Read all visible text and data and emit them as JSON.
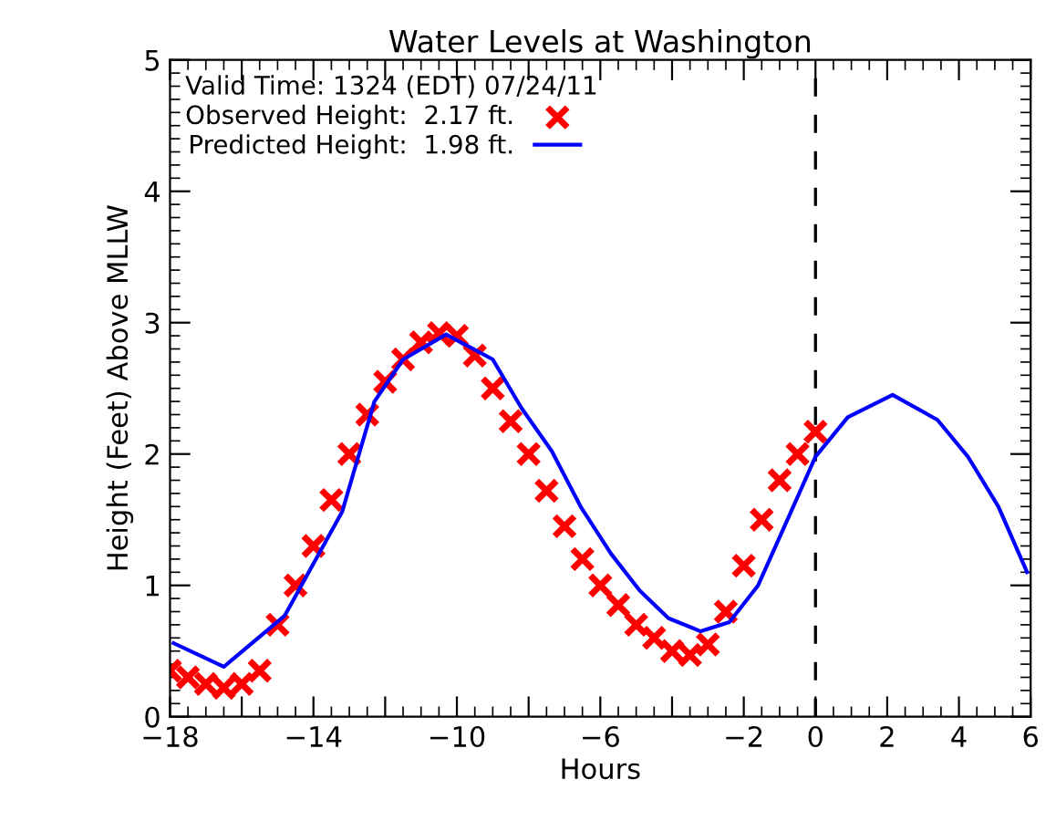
{
  "chart_data": {
    "type": "line",
    "title": "Water Levels at Washington",
    "xlabel": "Hours",
    "ylabel": "Height (Feet) Above MLLW",
    "legend_title": "Valid Time: 1324 (EDT) 07/24/11",
    "legend": "top left",
    "grid": false,
    "xlim": [
      -18,
      6
    ],
    "ylim": [
      0,
      5
    ],
    "xticks": [
      -18,
      {
        "value": -16,
        "label": null
      },
      -14,
      {
        "value": -12,
        "label": null
      },
      -10,
      {
        "value": -8,
        "label": null
      },
      -6,
      {
        "value": -4,
        "label": null
      },
      -2,
      0,
      2,
      4,
      6
    ],
    "yticks": [
      0,
      1,
      2,
      3,
      4,
      5
    ],
    "ref_lines": [
      {
        "axis": "x",
        "value": 0,
        "color": "#000000",
        "line_style": "dashed"
      }
    ],
    "series": [
      {
        "name": "Observed Height:  2.17 ft.",
        "type": "scatter",
        "marker": "cross",
        "color": "#ff0000",
        "x": [
          -18,
          -17.5,
          -17,
          -16.5,
          -16,
          -15.5,
          -15,
          -14.5,
          -14,
          -13.5,
          -13,
          -12.5,
          -12,
          -11.5,
          -11,
          -10.5,
          -10,
          -9.5,
          -9,
          -8.5,
          -8,
          -7.5,
          -7,
          -6.5,
          -6,
          -5.5,
          -5,
          -4.5,
          -4,
          -3.5,
          -3,
          -2.5,
          -2,
          -1.5,
          -1,
          -0.5,
          0
        ],
        "values": [
          0.35,
          0.3,
          0.25,
          0.22,
          0.25,
          0.35,
          0.7,
          1.0,
          1.3,
          1.65,
          2.0,
          2.3,
          2.55,
          2.72,
          2.85,
          2.92,
          2.9,
          2.75,
          2.5,
          2.25,
          2.0,
          1.72,
          1.45,
          1.2,
          1.0,
          0.85,
          0.7,
          0.6,
          0.5,
          0.47,
          0.55,
          0.8,
          1.15,
          1.5,
          1.8,
          2.0,
          2.17
        ]
      },
      {
        "name": "Predicted Height:  1.98 ft.",
        "marker": "none",
        "line_style": "solid",
        "color": "#0000ff",
        "x": [
          -17.9,
          -16.5,
          -14.8,
          -13.2,
          -12.3,
          -11.5,
          -10.3,
          -9.0,
          -8.2,
          -7.35,
          -6.55,
          -5.7,
          -4.9,
          -4.1,
          -3.2,
          -2.4,
          -1.6,
          -0.75,
          0,
          0.9,
          2.15,
          3.4,
          4.25,
          5.1,
          5.9
        ],
        "values": [
          0.56,
          0.38,
          0.77,
          1.56,
          2.4,
          2.72,
          2.91,
          2.72,
          2.35,
          2.02,
          1.6,
          1.24,
          0.96,
          0.75,
          0.65,
          0.72,
          1.0,
          1.52,
          1.98,
          2.28,
          2.45,
          2.26,
          1.98,
          1.6,
          1.1
        ]
      }
    ]
  }
}
